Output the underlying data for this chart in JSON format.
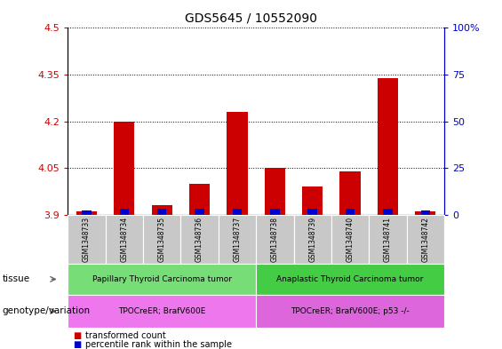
{
  "title": "GDS5645 / 10552090",
  "samples": [
    "GSM1348733",
    "GSM1348734",
    "GSM1348735",
    "GSM1348736",
    "GSM1348737",
    "GSM1348738",
    "GSM1348739",
    "GSM1348740",
    "GSM1348741",
    "GSM1348742"
  ],
  "transformed_count": [
    3.91,
    4.2,
    3.93,
    4.0,
    4.23,
    4.05,
    3.99,
    4.04,
    4.34,
    3.91
  ],
  "percentile_rank": [
    2,
    3,
    3,
    3,
    3,
    3,
    3,
    3,
    3,
    2
  ],
  "ylim_left": [
    3.9,
    4.5
  ],
  "ylim_right": [
    0,
    100
  ],
  "yticks_left": [
    3.9,
    4.05,
    4.2,
    4.35,
    4.5
  ],
  "yticks_right": [
    0,
    25,
    50,
    75,
    100
  ],
  "ytick_labels_left": [
    "3.9",
    "4.05",
    "4.2",
    "4.35",
    "4.5"
  ],
  "ytick_labels_right": [
    "0",
    "25",
    "50",
    "75",
    "100%"
  ],
  "left_tick_color": "#cc0000",
  "right_tick_color": "#0000cc",
  "bar_color_red": "#cc0000",
  "bar_color_blue": "#0000cc",
  "tissue_groups": [
    {
      "label": "Papillary Thyroid Carcinoma tumor",
      "start": 0,
      "end": 4,
      "color": "#77dd77"
    },
    {
      "label": "Anaplastic Thyroid Carcinoma tumor",
      "start": 5,
      "end": 9,
      "color": "#44cc44"
    }
  ],
  "genotype_groups": [
    {
      "label": "TPOCreER; BrafV600E",
      "start": 0,
      "end": 4,
      "color": "#ee77ee"
    },
    {
      "label": "TPOCreER; BrafV600E; p53 -/-",
      "start": 5,
      "end": 9,
      "color": "#dd66dd"
    }
  ],
  "tissue_row_label": "tissue",
  "genotype_row_label": "genotype/variation",
  "legend_red": "transformed count",
  "legend_blue": "percentile rank within the sample",
  "base_value": 3.9
}
